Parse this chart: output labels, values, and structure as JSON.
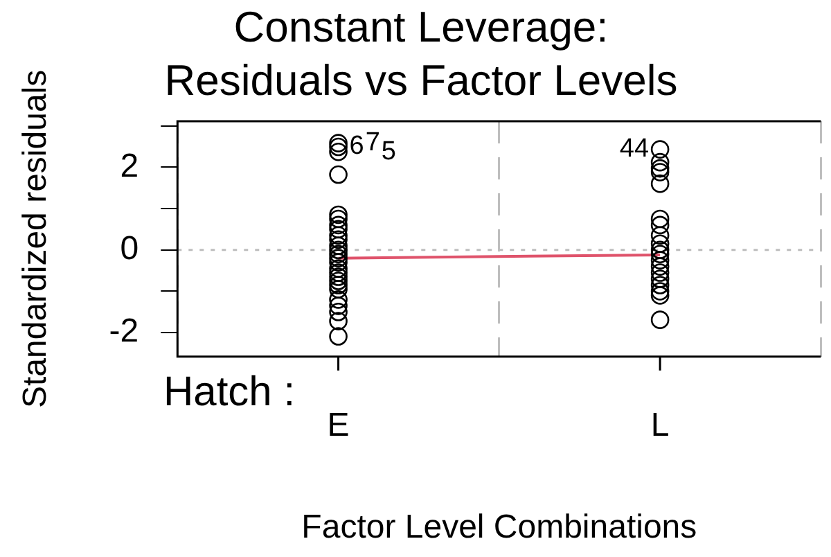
{
  "chart_data": {
    "type": "scatter",
    "title": "Constant Leverage:\nResiduals vs Factor Levels",
    "xlabel": "Factor Level Combinations",
    "ylabel": "Standardized residuals",
    "categories": [
      "E",
      "L"
    ],
    "ylim": [
      -2.58,
      3.11
    ],
    "yticks": [
      -2,
      {
        "value": -1,
        "label": null
      },
      0,
      {
        "value": 1,
        "label": null
      },
      2,
      {
        "value": 3,
        "label": null
      }
    ],
    "grid": "x",
    "legend": false,
    "marker": "circle",
    "series": [
      {
        "color": "#000000",
        "x": [
          "E",
          "E",
          "E",
          "E",
          "E",
          "E",
          "E",
          "E",
          "E",
          "E",
          "E",
          "E",
          "E",
          "E",
          "E",
          "E",
          "E",
          "E",
          "E",
          "E",
          "E",
          "E",
          "E",
          "E",
          "E",
          "E"
        ],
        "values": [
          2.58,
          2.49,
          2.37,
          1.82,
          0.85,
          0.75,
          0.6,
          0.5,
          0.35,
          0.25,
          0.1,
          0.0,
          -0.1,
          -0.2,
          -0.3,
          -0.45,
          -0.55,
          -0.65,
          -0.75,
          -0.85,
          -0.95,
          -1.2,
          -1.35,
          -1.5,
          -1.72,
          -2.09
        ]
      },
      {
        "color": "#000000",
        "x": [
          "L",
          "L",
          "L",
          "L",
          "L",
          "L",
          "L",
          "L",
          "L",
          "L",
          "L",
          "L",
          "L",
          "L",
          "L",
          "L",
          "L",
          "L",
          "L"
        ],
        "values": [
          2.43,
          2.12,
          1.97,
          1.88,
          1.6,
          0.75,
          0.6,
          0.35,
          0.15,
          0.0,
          -0.1,
          -0.25,
          -0.4,
          -0.55,
          -0.7,
          -0.85,
          -1.0,
          -1.1,
          -1.69
        ]
      },
      {
        "type": "line",
        "marker": "none",
        "color": "#df536b",
        "x": [
          "E",
          "L"
        ],
        "values": [
          -0.2,
          -0.12
        ]
      }
    ],
    "ref_lines": [
      {
        "axis": "y",
        "value": 0,
        "color": "#bebebe",
        "line_style": "dotted"
      }
    ],
    "annotations": [
      "Hatch :",
      {
        "text": "6",
        "x": "E",
        "y": 2.49
      },
      {
        "text": "7",
        "x": "E",
        "y": 2.58
      },
      {
        "text": "5",
        "x": "E",
        "y": 2.37
      },
      {
        "text": "44",
        "x": "L",
        "y": 2.43
      }
    ]
  }
}
